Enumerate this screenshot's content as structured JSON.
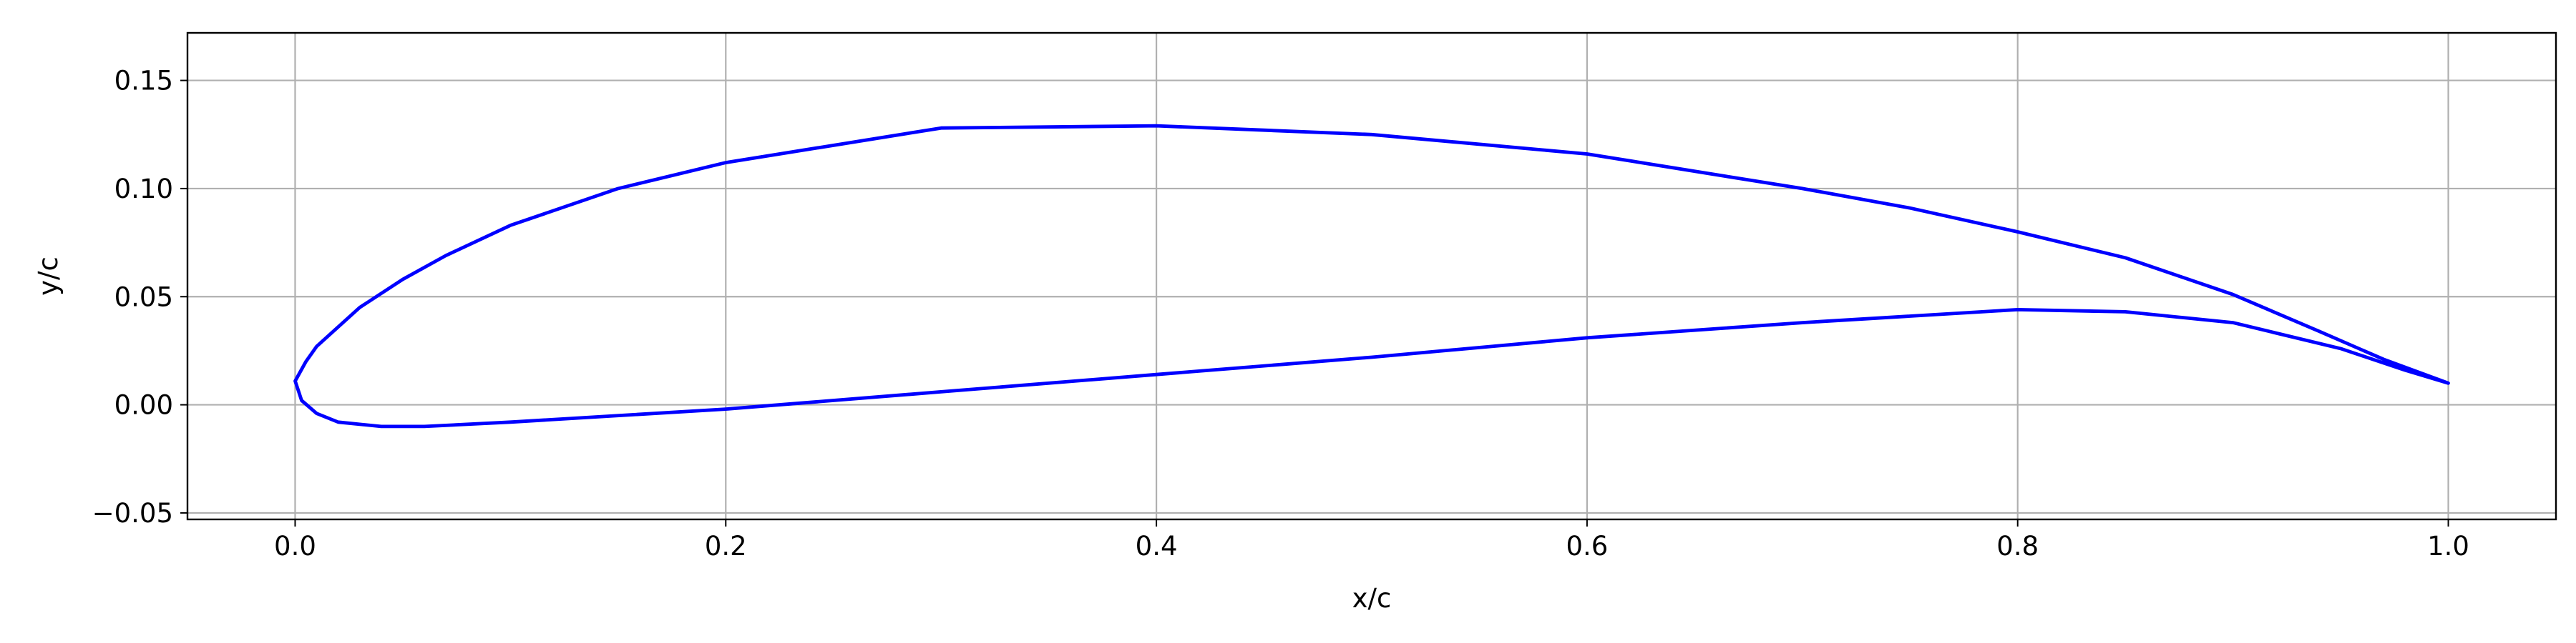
{
  "chart_data": {
    "type": "line",
    "title": "",
    "xlabel": "x/c",
    "ylabel": "y/c",
    "xlim": [
      -0.05,
      1.05
    ],
    "ylim": [
      -0.053,
      0.172
    ],
    "xticks": [
      0.0,
      0.2,
      0.4,
      0.6,
      0.8,
      1.0
    ],
    "xtick_labels": [
      "0.0",
      "0.2",
      "0.4",
      "0.6",
      "0.8",
      "1.0"
    ],
    "yticks": [
      -0.05,
      0.0,
      0.05,
      0.1,
      0.15
    ],
    "ytick_labels": [
      "−0.05",
      "0.00",
      "0.05",
      "0.10",
      "0.15"
    ],
    "grid": true,
    "legend": "none",
    "series": [
      {
        "color": "#0000ff",
        "x": [
          1.0,
          0.97,
          0.94,
          0.9,
          0.85,
          0.8,
          0.75,
          0.7,
          0.6,
          0.5,
          0.4,
          0.3,
          0.2,
          0.15,
          0.1,
          0.07,
          0.05,
          0.03,
          0.02,
          0.01,
          0.005,
          0.0,
          0.003,
          0.01,
          0.02,
          0.04,
          0.06,
          0.1,
          0.2,
          0.3,
          0.4,
          0.5,
          0.6,
          0.7,
          0.8,
          0.85,
          0.9,
          0.95,
          0.98,
          1.0
        ],
        "y": [
          0.01,
          0.021,
          0.034,
          0.051,
          0.068,
          0.08,
          0.091,
          0.1,
          0.116,
          0.125,
          0.129,
          0.128,
          0.112,
          0.1,
          0.083,
          0.069,
          0.058,
          0.045,
          0.036,
          0.027,
          0.02,
          0.011,
          0.002,
          -0.004,
          -0.008,
          -0.01,
          -0.01,
          -0.008,
          -0.002,
          0.006,
          0.014,
          0.022,
          0.031,
          0.038,
          0.044,
          0.043,
          0.038,
          0.026,
          0.016,
          0.01
        ]
      }
    ]
  }
}
